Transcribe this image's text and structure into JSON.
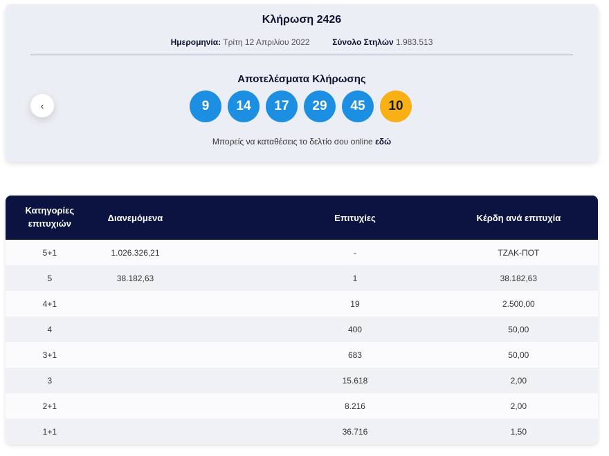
{
  "draw": {
    "title": "Κλήρωση 2426",
    "date_label": "Ημερομηνία:",
    "date_value": "Τρίτη 12 Απριλίου 2022",
    "columns_label": "Σύνολο Στηλών",
    "columns_value": "1.983.513",
    "results_title": "Αποτελέσματα Κλήρωσης",
    "prev_icon": "‹",
    "numbers": [
      "9",
      "14",
      "17",
      "29",
      "45"
    ],
    "joker": "10",
    "online_note": "Μπορείς να καταθέσεις το δελτίο σου online",
    "online_link": "εδώ"
  },
  "colors": {
    "ball": "#1d8fe3",
    "joker": "#f8b014",
    "header_bg": "#0b1440"
  },
  "table": {
    "headers": {
      "category_line1": "Κατηγορίες",
      "category_line2": "επιτυχιών",
      "distributed": "Διανεμόμενα",
      "winners": "Επιτυχίες",
      "prize": "Κέρδη ανά επιτυχία"
    },
    "rows": [
      {
        "category": "5+1",
        "distributed": "1.026.326,21",
        "winners": "-",
        "prize": "ΤΖΑΚ-ΠΟΤ"
      },
      {
        "category": "5",
        "distributed": "38.182,63",
        "winners": "1",
        "prize": "38.182,63"
      },
      {
        "category": "4+1",
        "distributed": "",
        "winners": "19",
        "prize": "2.500,00"
      },
      {
        "category": "4",
        "distributed": "",
        "winners": "400",
        "prize": "50,00"
      },
      {
        "category": "3+1",
        "distributed": "",
        "winners": "683",
        "prize": "50,00"
      },
      {
        "category": "3",
        "distributed": "",
        "winners": "15.618",
        "prize": "2,00"
      },
      {
        "category": "2+1",
        "distributed": "",
        "winners": "8.216",
        "prize": "2,00"
      },
      {
        "category": "1+1",
        "distributed": "",
        "winners": "36.716",
        "prize": "1,50"
      }
    ]
  }
}
